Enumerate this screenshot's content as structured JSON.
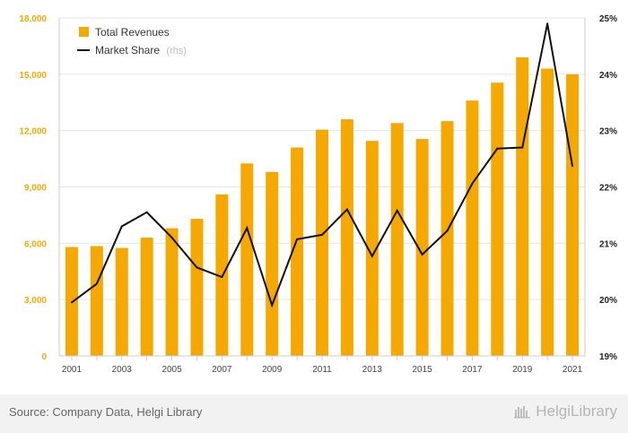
{
  "chart_data": {
    "type": "bar+line",
    "categories": [
      "2001",
      "2002",
      "2003",
      "2004",
      "2005",
      "2006",
      "2007",
      "2008",
      "2009",
      "2010",
      "2011",
      "2012",
      "2013",
      "2014",
      "2015",
      "2016",
      "2017",
      "2018",
      "2019",
      "2020",
      "2021"
    ],
    "x_tick_labels": [
      "2001",
      "2003",
      "2005",
      "2007",
      "2009",
      "2011",
      "2013",
      "2015",
      "2017",
      "2019",
      "2021"
    ],
    "series": [
      {
        "name": "Total Revenues",
        "type": "bar",
        "axis": "left",
        "color": "#f5a800",
        "values": [
          5800,
          5850,
          5750,
          6300,
          6800,
          7300,
          8600,
          10250,
          9800,
          11100,
          12050,
          12600,
          11450,
          12400,
          11550,
          12500,
          13600,
          14550,
          15900,
          15300,
          15000
        ]
      },
      {
        "name": "Market Share",
        "name_suffix": "(rhs)",
        "type": "line",
        "axis": "right",
        "color": "#111111",
        "values": [
          19.95,
          20.28,
          21.3,
          21.55,
          21.1,
          20.57,
          20.4,
          21.27,
          19.9,
          21.07,
          21.15,
          21.6,
          20.77,
          21.58,
          20.8,
          21.22,
          22.06,
          22.68,
          22.7,
          24.9,
          22.37
        ]
      }
    ],
    "y_left": {
      "ylim": [
        0,
        18000
      ],
      "ticks": [
        0,
        3000,
        6000,
        9000,
        12000,
        15000,
        18000
      ],
      "tick_labels": [
        "0",
        "3,000",
        "6,000",
        "9,000",
        "12,000",
        "15,000",
        "18,000"
      ]
    },
    "y_right": {
      "ylim": [
        19,
        25
      ],
      "ticks": [
        19,
        20,
        21,
        22,
        23,
        24,
        25
      ],
      "tick_labels": [
        "19%",
        "20%",
        "21%",
        "22%",
        "23%",
        "24%",
        "25%"
      ]
    },
    "grid": true,
    "legend": "top-left"
  },
  "legend": {
    "revenues_label": "Total Revenues",
    "share_label": "Market Share",
    "share_suffix": "(rhs)"
  },
  "footer": {
    "source": "Source: Company Data, Helgi Library",
    "brand": "HelgiLibrary"
  }
}
